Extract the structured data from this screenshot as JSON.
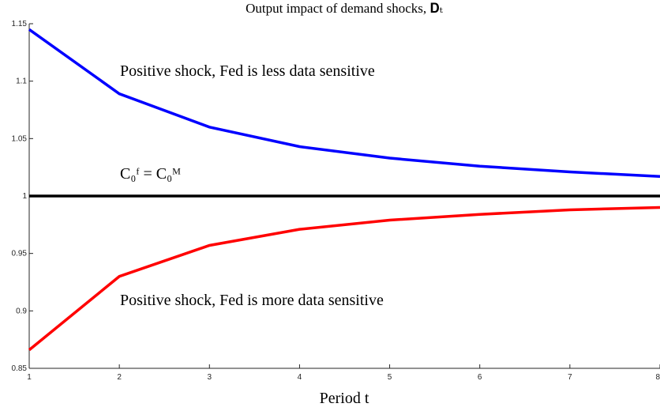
{
  "chart_data": {
    "type": "line",
    "title": "Output impact of demand shocks, 𝐃ₜ",
    "xlabel": "Period t",
    "x": [
      1,
      2,
      3,
      4,
      5,
      6,
      7,
      8
    ],
    "series": [
      {
        "color": "#0000ff",
        "values": [
          1.145,
          1.089,
          1.06,
          1.043,
          1.033,
          1.026,
          1.021,
          1.017
        ]
      },
      {
        "color": "#000000",
        "values": [
          1,
          1,
          1,
          1,
          1,
          1,
          1,
          1
        ]
      },
      {
        "color": "#ff0000",
        "values": [
          0.866,
          0.93,
          0.957,
          0.971,
          0.979,
          0.984,
          0.988,
          0.99
        ]
      }
    ],
    "annotations": [
      "Positive shock, Fed is less data sensitive",
      "C₀ᶠ = C₀ᴹ",
      "Positive shock, Fed is more data sensitive"
    ],
    "xlim": [
      1,
      8
    ],
    "xticks": [
      1,
      2,
      3,
      4,
      5,
      6,
      7,
      8
    ],
    "ylim": [
      0.85,
      1.15
    ],
    "yticks": [
      0.85,
      0.9,
      0.95,
      1,
      1.05,
      1.1,
      1.15
    ],
    "grid": false
  }
}
